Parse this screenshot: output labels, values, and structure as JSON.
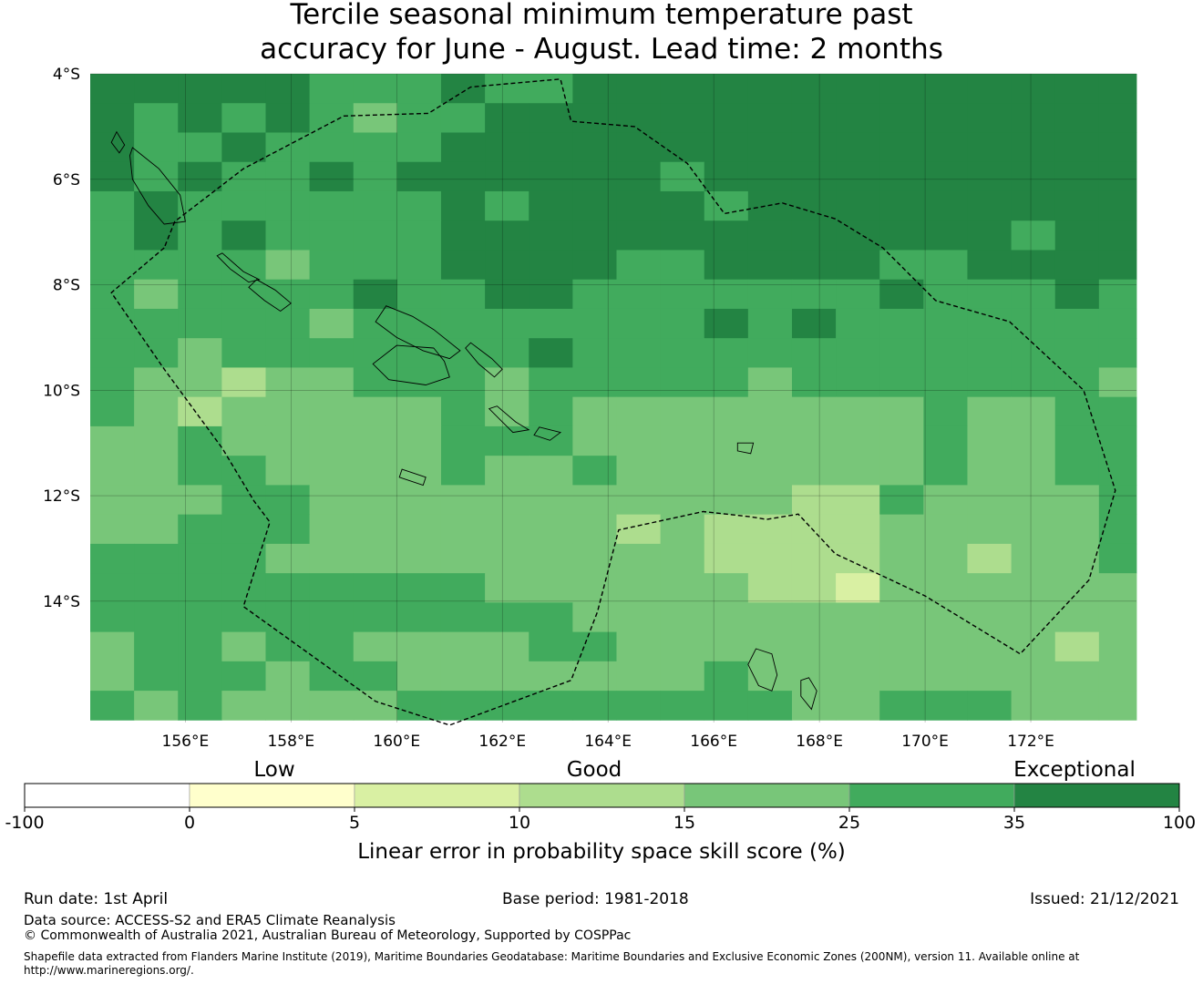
{
  "title": {
    "line1": "Tercile seasonal minimum temperature past",
    "line2": "accuracy for June - August. Lead time: 2 months"
  },
  "map": {
    "lon_range": [
      154.2,
      174.0
    ],
    "lat_range": [
      -16.3,
      -4.0
    ],
    "lat_ticks": [
      {
        "value": -4,
        "label": "4°S"
      },
      {
        "value": -6,
        "label": "6°S"
      },
      {
        "value": -8,
        "label": "8°S"
      },
      {
        "value": -10,
        "label": "10°S"
      },
      {
        "value": -12,
        "label": "12°S"
      },
      {
        "value": -14,
        "label": "14°S"
      }
    ],
    "lon_ticks": [
      {
        "value": 156,
        "label": "156°E"
      },
      {
        "value": 158,
        "label": "158°E"
      },
      {
        "value": 160,
        "label": "160°E"
      },
      {
        "value": 162,
        "label": "162°E"
      },
      {
        "value": 164,
        "label": "164°E"
      },
      {
        "value": 166,
        "label": "166°E"
      },
      {
        "value": 168,
        "label": "168°E"
      },
      {
        "value": 170,
        "label": "170°E"
      },
      {
        "value": 172,
        "label": "172°E"
      }
    ],
    "grid_origin": {
      "lon": 154.2,
      "lat": -4.0
    },
    "cell_size_deg": [
      0.83,
      0.557
    ],
    "skill_class_rows": [
      [
        6,
        6,
        6,
        6,
        6,
        5,
        5,
        5,
        6,
        5,
        5,
        6,
        6,
        6,
        6,
        6,
        6,
        6,
        6,
        6,
        6,
        6,
        6,
        6
      ],
      [
        6,
        5,
        6,
        5,
        6,
        5,
        4,
        5,
        5,
        6,
        6,
        6,
        6,
        6,
        6,
        6,
        6,
        6,
        6,
        6,
        6,
        6,
        6,
        6
      ],
      [
        6,
        5,
        5,
        6,
        5,
        5,
        5,
        5,
        6,
        6,
        6,
        6,
        6,
        6,
        6,
        6,
        6,
        6,
        6,
        6,
        6,
        6,
        6,
        6
      ],
      [
        6,
        5,
        6,
        5,
        5,
        6,
        5,
        6,
        6,
        6,
        6,
        6,
        6,
        5,
        6,
        6,
        6,
        6,
        6,
        6,
        6,
        6,
        6,
        6
      ],
      [
        5,
        6,
        5,
        5,
        5,
        5,
        5,
        5,
        6,
        5,
        6,
        6,
        6,
        6,
        5,
        6,
        6,
        6,
        6,
        6,
        6,
        6,
        6,
        6
      ],
      [
        5,
        6,
        5,
        6,
        5,
        5,
        5,
        5,
        6,
        6,
        6,
        6,
        6,
        6,
        6,
        6,
        6,
        6,
        6,
        6,
        6,
        5,
        6,
        6
      ],
      [
        5,
        5,
        5,
        5,
        4,
        5,
        5,
        5,
        6,
        6,
        6,
        6,
        5,
        5,
        6,
        6,
        6,
        6,
        5,
        5,
        6,
        6,
        6,
        6
      ],
      [
        5,
        4,
        5,
        5,
        5,
        5,
        6,
        5,
        5,
        6,
        6,
        5,
        5,
        5,
        5,
        5,
        5,
        5,
        6,
        5,
        5,
        5,
        6,
        5
      ],
      [
        5,
        5,
        5,
        5,
        5,
        4,
        5,
        5,
        5,
        5,
        5,
        5,
        5,
        5,
        6,
        5,
        6,
        5,
        5,
        5,
        5,
        5,
        5,
        5
      ],
      [
        5,
        5,
        4,
        5,
        5,
        5,
        5,
        5,
        5,
        5,
        6,
        5,
        5,
        5,
        5,
        5,
        5,
        5,
        5,
        5,
        5,
        5,
        5,
        5
      ],
      [
        5,
        4,
        4,
        3,
        4,
        4,
        5,
        5,
        5,
        4,
        5,
        5,
        5,
        5,
        5,
        4,
        5,
        5,
        5,
        5,
        5,
        5,
        5,
        4
      ],
      [
        5,
        4,
        3,
        4,
        4,
        4,
        4,
        4,
        5,
        4,
        5,
        4,
        4,
        4,
        4,
        4,
        4,
        4,
        4,
        5,
        4,
        4,
        5,
        5
      ],
      [
        4,
        4,
        5,
        4,
        4,
        4,
        4,
        4,
        5,
        5,
        5,
        4,
        4,
        4,
        4,
        4,
        4,
        4,
        4,
        5,
        4,
        4,
        5,
        5
      ],
      [
        4,
        4,
        5,
        5,
        4,
        4,
        4,
        4,
        5,
        4,
        4,
        5,
        4,
        4,
        4,
        4,
        4,
        4,
        4,
        5,
        4,
        4,
        5,
        5
      ],
      [
        4,
        4,
        4,
        5,
        5,
        4,
        4,
        4,
        4,
        4,
        4,
        4,
        4,
        4,
        4,
        4,
        3,
        3,
        5,
        4,
        4,
        4,
        4,
        5
      ],
      [
        4,
        4,
        5,
        5,
        5,
        4,
        4,
        4,
        4,
        4,
        4,
        4,
        3,
        4,
        3,
        3,
        3,
        3,
        4,
        4,
        4,
        4,
        4,
        5
      ],
      [
        5,
        5,
        5,
        5,
        4,
        4,
        4,
        4,
        4,
        4,
        4,
        4,
        4,
        4,
        3,
        3,
        3,
        3,
        4,
        4,
        3,
        4,
        4,
        5
      ],
      [
        5,
        5,
        5,
        5,
        5,
        5,
        5,
        5,
        5,
        4,
        4,
        4,
        4,
        4,
        4,
        3,
        3,
        2,
        4,
        4,
        4,
        4,
        4,
        4
      ],
      [
        5,
        5,
        5,
        5,
        5,
        5,
        5,
        5,
        5,
        5,
        5,
        4,
        4,
        4,
        4,
        4,
        4,
        4,
        4,
        4,
        4,
        4,
        4,
        4
      ],
      [
        4,
        5,
        5,
        4,
        5,
        5,
        4,
        4,
        4,
        4,
        5,
        5,
        4,
        4,
        4,
        4,
        4,
        4,
        4,
        4,
        4,
        4,
        3,
        4
      ],
      [
        4,
        5,
        5,
        5,
        4,
        5,
        5,
        4,
        4,
        4,
        4,
        4,
        4,
        4,
        5,
        4,
        4,
        4,
        4,
        4,
        4,
        4,
        4,
        4
      ],
      [
        5,
        4,
        5,
        4,
        4,
        4,
        4,
        5,
        5,
        5,
        5,
        5,
        5,
        5,
        5,
        5,
        4,
        4,
        5,
        5,
        5,
        4,
        4,
        4
      ]
    ],
    "eez_boundary": [
      [
        155.6,
        -7.3
      ],
      [
        154.6,
        -8.15
      ],
      [
        155.6,
        -9.6
      ],
      [
        156.7,
        -11.1
      ],
      [
        157.3,
        -12.1
      ],
      [
        157.6,
        -12.5
      ],
      [
        157.1,
        -14.1
      ],
      [
        159.6,
        -15.9
      ],
      [
        161.0,
        -16.35
      ],
      [
        163.3,
        -15.5
      ],
      [
        163.8,
        -14.2
      ],
      [
        164.2,
        -12.65
      ],
      [
        165.8,
        -12.3
      ],
      [
        166.7,
        -12.4
      ],
      [
        167.0,
        -12.45
      ],
      [
        167.6,
        -12.35
      ],
      [
        168.3,
        -13.1
      ],
      [
        170.0,
        -13.9
      ],
      [
        171.8,
        -15.0
      ],
      [
        173.1,
        -13.6
      ],
      [
        173.6,
        -11.9
      ],
      [
        173.0,
        -10.0
      ],
      [
        171.6,
        -8.7
      ],
      [
        170.2,
        -8.3
      ],
      [
        169.2,
        -7.3
      ],
      [
        168.3,
        -6.75
      ],
      [
        167.3,
        -6.45
      ],
      [
        166.2,
        -6.65
      ],
      [
        165.5,
        -5.7
      ],
      [
        164.5,
        -5.0
      ],
      [
        163.3,
        -4.9
      ],
      [
        163.1,
        -4.1
      ],
      [
        161.4,
        -4.25
      ],
      [
        160.6,
        -4.75
      ],
      [
        159.0,
        -4.8
      ],
      [
        157.1,
        -5.8
      ],
      [
        155.8,
        -6.8
      ],
      [
        155.6,
        -7.3
      ]
    ],
    "islands": [
      [
        [
          159.8,
          -8.4
        ],
        [
          160.3,
          -8.6
        ],
        [
          160.7,
          -8.85
        ],
        [
          161.2,
          -9.25
        ],
        [
          161.0,
          -9.4
        ],
        [
          160.5,
          -9.25
        ],
        [
          160.0,
          -9.0
        ],
        [
          159.6,
          -8.7
        ]
      ],
      [
        [
          160.7,
          -9.2
        ],
        [
          160.0,
          -9.15
        ],
        [
          159.55,
          -9.5
        ],
        [
          159.85,
          -9.8
        ],
        [
          160.55,
          -9.9
        ],
        [
          161.0,
          -9.75
        ],
        [
          160.9,
          -9.45
        ]
      ],
      [
        [
          161.4,
          -9.1
        ],
        [
          161.8,
          -9.4
        ],
        [
          162.0,
          -9.6
        ],
        [
          161.85,
          -9.75
        ],
        [
          161.55,
          -9.5
        ],
        [
          161.3,
          -9.2
        ]
      ],
      [
        [
          161.9,
          -10.3
        ],
        [
          162.25,
          -10.6
        ],
        [
          162.5,
          -10.75
        ],
        [
          162.2,
          -10.8
        ],
        [
          161.95,
          -10.55
        ],
        [
          161.75,
          -10.35
        ]
      ],
      [
        [
          162.7,
          -10.7
        ],
        [
          163.1,
          -10.8
        ],
        [
          162.9,
          -10.95
        ],
        [
          162.6,
          -10.85
        ]
      ],
      [
        [
          157.35,
          -7.9
        ],
        [
          157.7,
          -8.1
        ],
        [
          158.0,
          -8.35
        ],
        [
          157.8,
          -8.5
        ],
        [
          157.5,
          -8.3
        ],
        [
          157.2,
          -8.05
        ]
      ],
      [
        [
          156.7,
          -7.4
        ],
        [
          157.1,
          -7.75
        ],
        [
          157.4,
          -7.9
        ],
        [
          157.2,
          -7.95
        ],
        [
          156.85,
          -7.7
        ],
        [
          156.6,
          -7.45
        ]
      ],
      [
        [
          155.0,
          -5.4
        ],
        [
          155.5,
          -5.8
        ],
        [
          155.9,
          -6.3
        ],
        [
          156.0,
          -6.8
        ],
        [
          155.6,
          -6.85
        ],
        [
          155.3,
          -6.5
        ],
        [
          155.0,
          -6.0
        ],
        [
          154.95,
          -5.55
        ]
      ],
      [
        [
          154.7,
          -5.1
        ],
        [
          154.85,
          -5.35
        ],
        [
          154.75,
          -5.5
        ],
        [
          154.6,
          -5.3
        ]
      ],
      [
        [
          167.1,
          -15.0
        ],
        [
          167.2,
          -15.4
        ],
        [
          167.1,
          -15.7
        ],
        [
          166.85,
          -15.6
        ],
        [
          166.65,
          -15.2
        ],
        [
          166.8,
          -14.9
        ]
      ],
      [
        [
          167.8,
          -15.45
        ],
        [
          167.95,
          -15.7
        ],
        [
          167.85,
          -16.05
        ],
        [
          167.65,
          -15.8
        ],
        [
          167.65,
          -15.5
        ]
      ],
      [
        [
          166.45,
          -11.0
        ],
        [
          166.75,
          -11.0
        ],
        [
          166.7,
          -11.2
        ],
        [
          166.45,
          -11.15
        ]
      ],
      [
        [
          160.1,
          -11.5
        ],
        [
          160.55,
          -11.65
        ],
        [
          160.5,
          -11.8
        ],
        [
          160.05,
          -11.65
        ]
      ]
    ]
  },
  "colorbar": {
    "category_low": "Low",
    "category_good": "Good",
    "category_exceptional": "Exceptional",
    "bins": [
      {
        "from": -100,
        "to": 0,
        "color": "#ffffff"
      },
      {
        "from": 0,
        "to": 5,
        "color": "#ffffcc"
      },
      {
        "from": 5,
        "to": 10,
        "color": "#d9f0a3"
      },
      {
        "from": 10,
        "to": 15,
        "color": "#addd8e"
      },
      {
        "from": 15,
        "to": 25,
        "color": "#78c679"
      },
      {
        "from": 25,
        "to": 35,
        "color": "#41ab5d"
      },
      {
        "from": 35,
        "to": 100,
        "color": "#238443"
      }
    ],
    "tick_labels": [
      "-100",
      "0",
      "5",
      "10",
      "15",
      "25",
      "35",
      "100"
    ],
    "label": "Linear error in probability space skill score (%)"
  },
  "footer": {
    "run_date": "Run date: 1st April",
    "base_period": "Base period: 1981-2018",
    "issued": "Issued: 21/12/2021",
    "data_source": "Data source: ACCESS-S2 and ERA5 Climate Reanalysis",
    "copyright": "© Commonwealth of Australia 2021, Australian Bureau of Meteorology, Supported by COSPPac",
    "shapefile_line1": "Shapefile data extracted from Flanders Marine Institute (2019), Maritime Boundaries Geodatabase: Maritime Boundaries and Exclusive Economic Zones (200NM), version 11. Available online at",
    "shapefile_line2": "http://www.marineregions.org/."
  }
}
